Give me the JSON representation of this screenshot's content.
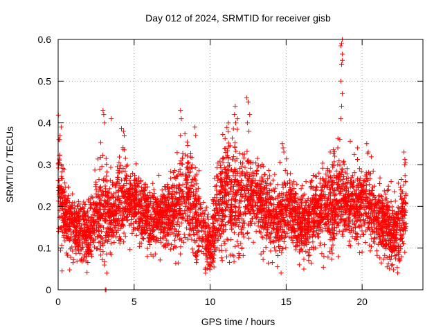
{
  "chart_data": {
    "type": "scatter",
    "title": "Day 012 of 2024, SRMTID for receiver gisb",
    "xlabel": "GPS time / hours",
    "ylabel": "SRMTID / TECUs",
    "xlim": [
      0,
      24
    ],
    "ylim": [
      0,
      0.6
    ],
    "xticks": [
      0,
      5,
      10,
      15,
      20
    ],
    "xtick_labels": [
      "0",
      "5",
      "10",
      "15",
      "20"
    ],
    "yticks": [
      0,
      0.1,
      0.2,
      0.3,
      0.4,
      0.5,
      0.6
    ],
    "ytick_labels": [
      "0",
      "0.1",
      "0.2",
      "0.3",
      "0.4",
      "0.5",
      "0.6"
    ],
    "grid": true,
    "marker": "+",
    "color": "#ff0000",
    "series": [
      {
        "name": "SRMTID",
        "profile_hours": [
          0,
          0.5,
          1,
          1.5,
          2,
          2.5,
          3,
          3.5,
          4,
          4.5,
          5,
          5.5,
          6,
          6.5,
          7,
          7.5,
          8,
          8.5,
          9,
          9.5,
          10,
          10.5,
          11,
          11.5,
          12,
          12.5,
          13,
          13.5,
          14,
          14.5,
          15,
          15.5,
          16,
          16.5,
          17,
          17.5,
          18,
          18.5,
          19,
          19.5,
          20,
          20.5,
          21,
          21.5,
          22,
          22.5,
          22.8
        ],
        "profile_median": [
          0.26,
          0.17,
          0.15,
          0.15,
          0.13,
          0.18,
          0.2,
          0.18,
          0.21,
          0.22,
          0.21,
          0.18,
          0.17,
          0.17,
          0.18,
          0.19,
          0.2,
          0.23,
          0.18,
          0.14,
          0.1,
          0.2,
          0.24,
          0.24,
          0.22,
          0.22,
          0.22,
          0.2,
          0.17,
          0.18,
          0.2,
          0.18,
          0.15,
          0.17,
          0.19,
          0.19,
          0.2,
          0.22,
          0.2,
          0.2,
          0.21,
          0.21,
          0.16,
          0.16,
          0.13,
          0.14,
          0.2
        ],
        "profile_spread": [
          0.08,
          0.05,
          0.04,
          0.05,
          0.05,
          0.05,
          0.09,
          0.06,
          0.08,
          0.06,
          0.05,
          0.05,
          0.05,
          0.05,
          0.05,
          0.05,
          0.08,
          0.07,
          0.07,
          0.06,
          0.04,
          0.08,
          0.09,
          0.1,
          0.07,
          0.06,
          0.06,
          0.06,
          0.05,
          0.07,
          0.06,
          0.05,
          0.05,
          0.05,
          0.05,
          0.06,
          0.07,
          0.07,
          0.05,
          0.06,
          0.06,
          0.06,
          0.05,
          0.05,
          0.05,
          0.06,
          0.07
        ],
        "points_per_hour": 200,
        "coverage": [
          [
            0,
            22.9
          ]
        ],
        "notable_points": [
          {
            "x": 3.1,
            "y": 0.0
          },
          {
            "x": 3.15,
            "y": 0.0
          },
          {
            "x": 3.2,
            "y": 0.04
          },
          {
            "x": 0.05,
            "y": 0.36
          },
          {
            "x": 0.2,
            "y": 0.39
          },
          {
            "x": 2.95,
            "y": 0.43
          },
          {
            "x": 3.0,
            "y": 0.42
          },
          {
            "x": 3.05,
            "y": 0.4
          },
          {
            "x": 4.3,
            "y": 0.38
          },
          {
            "x": 4.35,
            "y": 0.37
          },
          {
            "x": 3.5,
            "y": 0.41
          },
          {
            "x": 8.05,
            "y": 0.43
          },
          {
            "x": 8.1,
            "y": 0.41
          },
          {
            "x": 8.05,
            "y": 0.37
          },
          {
            "x": 9.0,
            "y": 0.39
          },
          {
            "x": 9.05,
            "y": 0.37
          },
          {
            "x": 11.2,
            "y": 0.4
          },
          {
            "x": 11.6,
            "y": 0.42
          },
          {
            "x": 11.65,
            "y": 0.44
          },
          {
            "x": 11.8,
            "y": 0.41
          },
          {
            "x": 12.4,
            "y": 0.46
          },
          {
            "x": 12.5,
            "y": 0.45
          },
          {
            "x": 12.45,
            "y": 0.4
          },
          {
            "x": 12.55,
            "y": 0.38
          },
          {
            "x": 12.6,
            "y": 0.42
          },
          {
            "x": 14.75,
            "y": 0.35
          },
          {
            "x": 14.8,
            "y": 0.34
          },
          {
            "x": 14.85,
            "y": 0.33
          },
          {
            "x": 17.9,
            "y": 0.33
          },
          {
            "x": 18.2,
            "y": 0.32
          },
          {
            "x": 18.4,
            "y": 0.34
          },
          {
            "x": 18.6,
            "y": 0.41
          },
          {
            "x": 18.65,
            "y": 0.44
          },
          {
            "x": 18.7,
            "y": 0.47
          },
          {
            "x": 18.6,
            "y": 0.5
          },
          {
            "x": 18.65,
            "y": 0.54
          },
          {
            "x": 18.7,
            "y": 0.55
          },
          {
            "x": 18.6,
            "y": 0.585
          },
          {
            "x": 18.65,
            "y": 0.59
          },
          {
            "x": 18.7,
            "y": 0.6
          },
          {
            "x": 18.7,
            "y": 0.565
          },
          {
            "x": 19.7,
            "y": 0.34
          },
          {
            "x": 20.3,
            "y": 0.35
          },
          {
            "x": 20.4,
            "y": 0.33
          },
          {
            "x": 22.75,
            "y": 0.33
          },
          {
            "x": 22.8,
            "y": 0.3
          },
          {
            "x": 9.7,
            "y": 0.04
          },
          {
            "x": 9.8,
            "y": 0.05
          },
          {
            "x": 9.9,
            "y": 0.06
          },
          {
            "x": 21.8,
            "y": 0.05
          },
          {
            "x": 22.0,
            "y": 0.06
          }
        ]
      }
    ]
  }
}
